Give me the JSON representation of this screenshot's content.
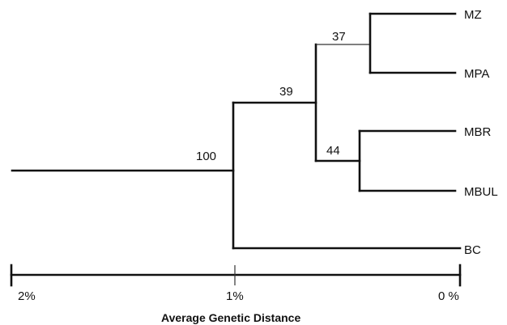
{
  "tree": {
    "leaves": [
      {
        "id": "MZ",
        "label": "MZ"
      },
      {
        "id": "MPA",
        "label": "MPA"
      },
      {
        "id": "MBR",
        "label": "MBR"
      },
      {
        "id": "MBUL",
        "label": "MBUL"
      },
      {
        "id": "BC",
        "label": "BC"
      }
    ],
    "nodes": [
      {
        "id": "root",
        "support": "100"
      },
      {
        "id": "n39",
        "support": "39"
      },
      {
        "id": "n37",
        "support": "37"
      },
      {
        "id": "n44",
        "support": "44"
      }
    ]
  },
  "scale": {
    "ticks": [
      {
        "id": "t2",
        "label": "2%"
      },
      {
        "id": "t1",
        "label": "1%"
      },
      {
        "id": "t0",
        "label": "0 %"
      }
    ],
    "title": "Average Genetic Distance"
  }
}
